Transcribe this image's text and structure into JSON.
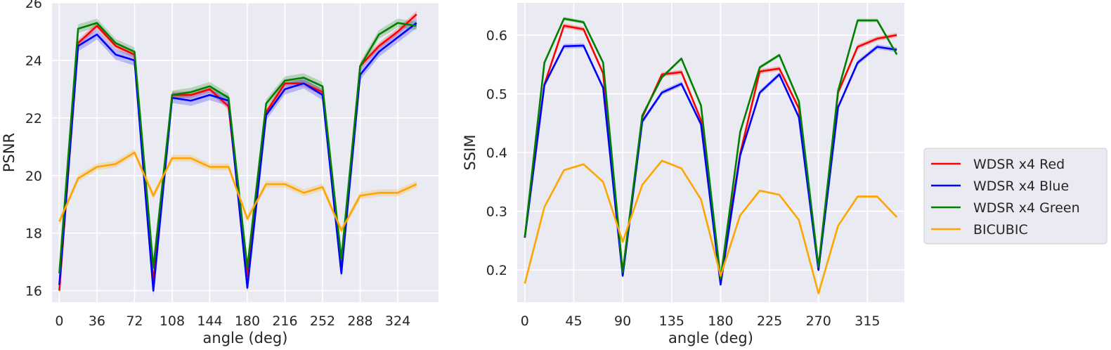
{
  "chart_data": [
    {
      "type": "line",
      "title": "",
      "xlabel": "angle (deg)",
      "ylabel": "PSNR",
      "xlim": [
        -7,
        363
      ],
      "ylim": [
        15.6,
        26
      ],
      "xticks": [
        0,
        36,
        72,
        108,
        144,
        180,
        216,
        252,
        288,
        324
      ],
      "yticks": [
        16,
        18,
        20,
        22,
        24,
        26
      ],
      "grid": true,
      "x": [
        0,
        18,
        36,
        54,
        72,
        90,
        108,
        126,
        144,
        162,
        180,
        198,
        216,
        234,
        252,
        270,
        288,
        306,
        324,
        342
      ],
      "series": [
        {
          "name": "WDSR x4 Red",
          "color": "#ff0000",
          "values": [
            16.0,
            24.6,
            25.2,
            24.5,
            24.2,
            16.3,
            22.8,
            22.8,
            23.0,
            22.4,
            16.5,
            22.2,
            23.2,
            23.2,
            22.9,
            16.9,
            23.8,
            24.5,
            25.0,
            25.6
          ],
          "band": 0.12
        },
        {
          "name": "WDSR x4 Blue",
          "color": "#0000ff",
          "values": [
            16.2,
            24.5,
            24.9,
            24.2,
            24.0,
            16.0,
            22.7,
            22.6,
            22.8,
            22.6,
            16.1,
            22.1,
            23.0,
            23.2,
            22.8,
            16.6,
            23.5,
            24.3,
            24.8,
            25.3
          ],
          "band": 0.18
        },
        {
          "name": "WDSR x4 Green",
          "color": "#008000",
          "values": [
            16.6,
            25.1,
            25.3,
            24.6,
            24.3,
            16.8,
            22.8,
            22.9,
            23.1,
            22.7,
            16.8,
            22.5,
            23.3,
            23.4,
            23.1,
            17.1,
            23.8,
            24.9,
            25.3,
            25.2
          ],
          "band": 0.15
        },
        {
          "name": "BICUBIC",
          "color": "#ffa500",
          "values": [
            18.4,
            19.9,
            20.3,
            20.4,
            20.8,
            19.3,
            20.6,
            20.6,
            20.3,
            20.3,
            18.5,
            19.7,
            19.7,
            19.4,
            19.6,
            18.1,
            19.3,
            19.4,
            19.4,
            19.7
          ],
          "band": 0.12
        }
      ]
    },
    {
      "type": "line",
      "title": "",
      "xlabel": "angle (deg)",
      "ylabel": "SSIM",
      "xlim": [
        -7,
        349
      ],
      "ylim": [
        0.145,
        0.655
      ],
      "xticks": [
        0,
        45,
        90,
        135,
        180,
        225,
        270,
        315
      ],
      "yticks": [
        0.2,
        0.3,
        0.4,
        0.5,
        0.6
      ],
      "grid": true,
      "x": [
        0,
        18,
        36,
        54,
        72,
        90,
        108,
        126,
        144,
        162,
        180,
        198,
        216,
        234,
        252,
        270,
        288,
        306,
        324,
        342
      ],
      "series": [
        {
          "name": "WDSR x4 Red",
          "color": "#ff0000",
          "values": [
            0.255,
            0.516,
            0.616,
            0.61,
            0.535,
            0.195,
            0.46,
            0.533,
            0.537,
            0.455,
            0.183,
            0.398,
            0.538,
            0.543,
            0.475,
            0.2,
            0.502,
            0.58,
            0.594,
            0.6
          ],
          "band": 0.004
        },
        {
          "name": "WDSR x4 Blue",
          "color": "#0000ff",
          "values": [
            0.255,
            0.515,
            0.581,
            0.582,
            0.51,
            0.19,
            0.453,
            0.502,
            0.517,
            0.448,
            0.175,
            0.395,
            0.502,
            0.533,
            0.46,
            0.2,
            0.477,
            0.553,
            0.58,
            0.575
          ],
          "band": 0.004
        },
        {
          "name": "WDSR x4 Green",
          "color": "#008000",
          "values": [
            0.256,
            0.553,
            0.628,
            0.622,
            0.553,
            0.196,
            0.463,
            0.528,
            0.56,
            0.48,
            0.185,
            0.435,
            0.545,
            0.566,
            0.487,
            0.205,
            0.505,
            0.625,
            0.625,
            0.567
          ],
          "band": 0.003
        },
        {
          "name": "BICUBIC",
          "color": "#ffa500",
          "values": [
            0.177,
            0.307,
            0.37,
            0.38,
            0.35,
            0.248,
            0.345,
            0.386,
            0.373,
            0.32,
            0.19,
            0.293,
            0.335,
            0.328,
            0.285,
            0.16,
            0.275,
            0.325,
            0.325,
            0.29
          ],
          "band": 0.002
        }
      ]
    }
  ],
  "legend": {
    "placement": "right",
    "entries": [
      "WDSR x4 Red",
      "WDSR x4 Blue",
      "WDSR x4 Green",
      "BICUBIC"
    ]
  }
}
